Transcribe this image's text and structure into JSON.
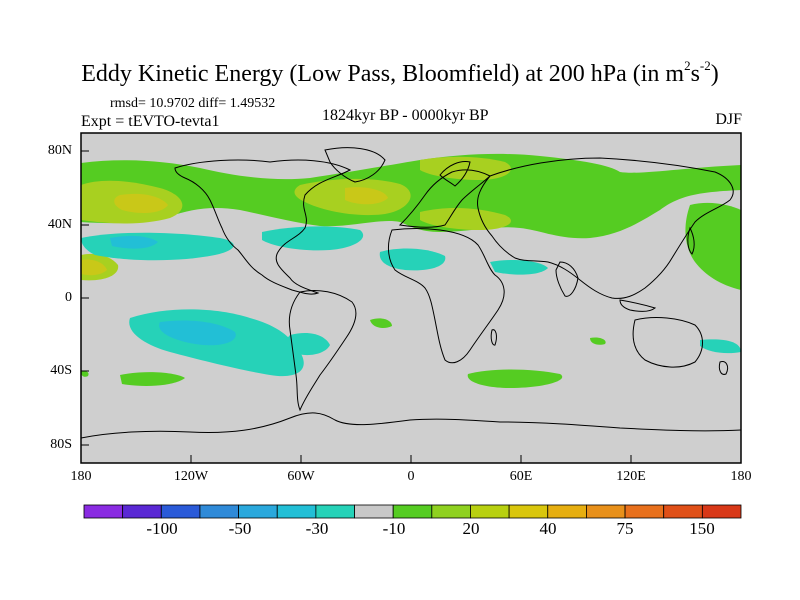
{
  "title": {
    "main": "Eddy Kinetic Energy (Low Pass, Bloomfield) at 200 hPa (in m",
    "sup1": "2",
    "mid": "s",
    "sup2": "-2",
    "close": ")"
  },
  "stats_line": "rmsd= 10.9702 diff= 1.49532",
  "expt_label": "Expt = tEVTO-tevta1",
  "period_label": "1824kyr BP - 0000kyr BP",
  "season_label": "DJF",
  "map": {
    "projection": "cylindrical equidistant",
    "lon_range": [
      -180,
      180
    ],
    "lat_range": [
      -90,
      90
    ],
    "background_color": "#cfcfcf",
    "y_ticks": [
      "80N",
      "40N",
      "0",
      "40S",
      "80S"
    ],
    "x_ticks": [
      "180",
      "120W",
      "60W",
      "0",
      "60E",
      "120E",
      "180"
    ]
  },
  "colorbar": {
    "colors": [
      "#8a2be2",
      "#5a28d4",
      "#2a5ad8",
      "#2f8ad8",
      "#2aa8dc",
      "#22bfd6",
      "#26d2b8",
      "#c8c8c8",
      "#55cc22",
      "#8fd120",
      "#b8d010",
      "#d9c60c",
      "#e6ae10",
      "#e8901a",
      "#e8701c",
      "#e05018",
      "#d83818"
    ],
    "labels": [
      "-100",
      "-50",
      "-30",
      "-10",
      "20",
      "40",
      "75",
      "150"
    ]
  },
  "legend_colors": {
    "green": "#55cc22",
    "yellow_green": "#a8d020",
    "yellow": "#c9c818",
    "cyan": "#26d2b8",
    "light_blue": "#22bfd6",
    "blue": "#2aa8dc"
  }
}
